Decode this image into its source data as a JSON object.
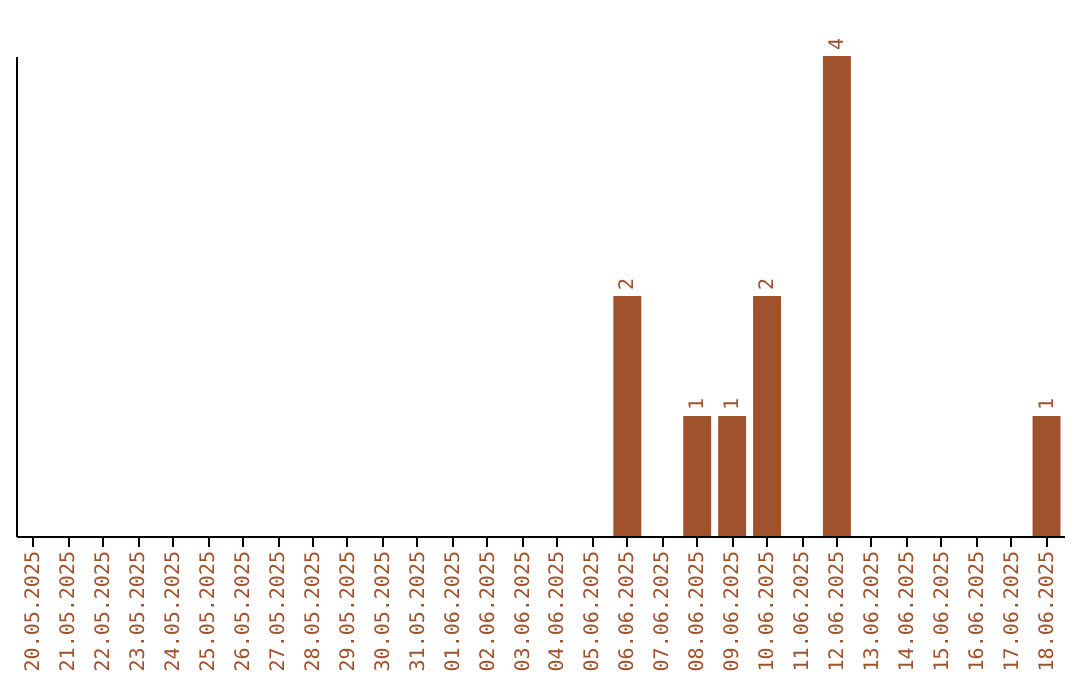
{
  "chart_data": {
    "type": "bar",
    "categories": [
      "20.05.2025",
      "21.05.2025",
      "22.05.2025",
      "23.05.2025",
      "24.05.2025",
      "25.05.2025",
      "26.05.2025",
      "27.05.2025",
      "28.05.2025",
      "29.05.2025",
      "30.05.2025",
      "31.05.2025",
      "01.06.2025",
      "02.06.2025",
      "03.06.2025",
      "04.06.2025",
      "05.06.2025",
      "06.06.2025",
      "07.06.2025",
      "08.06.2025",
      "09.06.2025",
      "10.06.2025",
      "11.06.2025",
      "12.06.2025",
      "13.06.2025",
      "14.06.2025",
      "15.06.2025",
      "16.06.2025",
      "17.06.2025",
      "18.06.2025"
    ],
    "values": [
      null,
      null,
      null,
      null,
      null,
      null,
      null,
      null,
      null,
      null,
      null,
      null,
      null,
      null,
      null,
      null,
      null,
      2,
      null,
      1,
      1,
      2,
      null,
      4,
      null,
      null,
      null,
      null,
      null,
      1
    ],
    "color": "#a0522d",
    "ylim": [
      0,
      4
    ],
    "data_labels": true,
    "tick_labels": "x"
  }
}
